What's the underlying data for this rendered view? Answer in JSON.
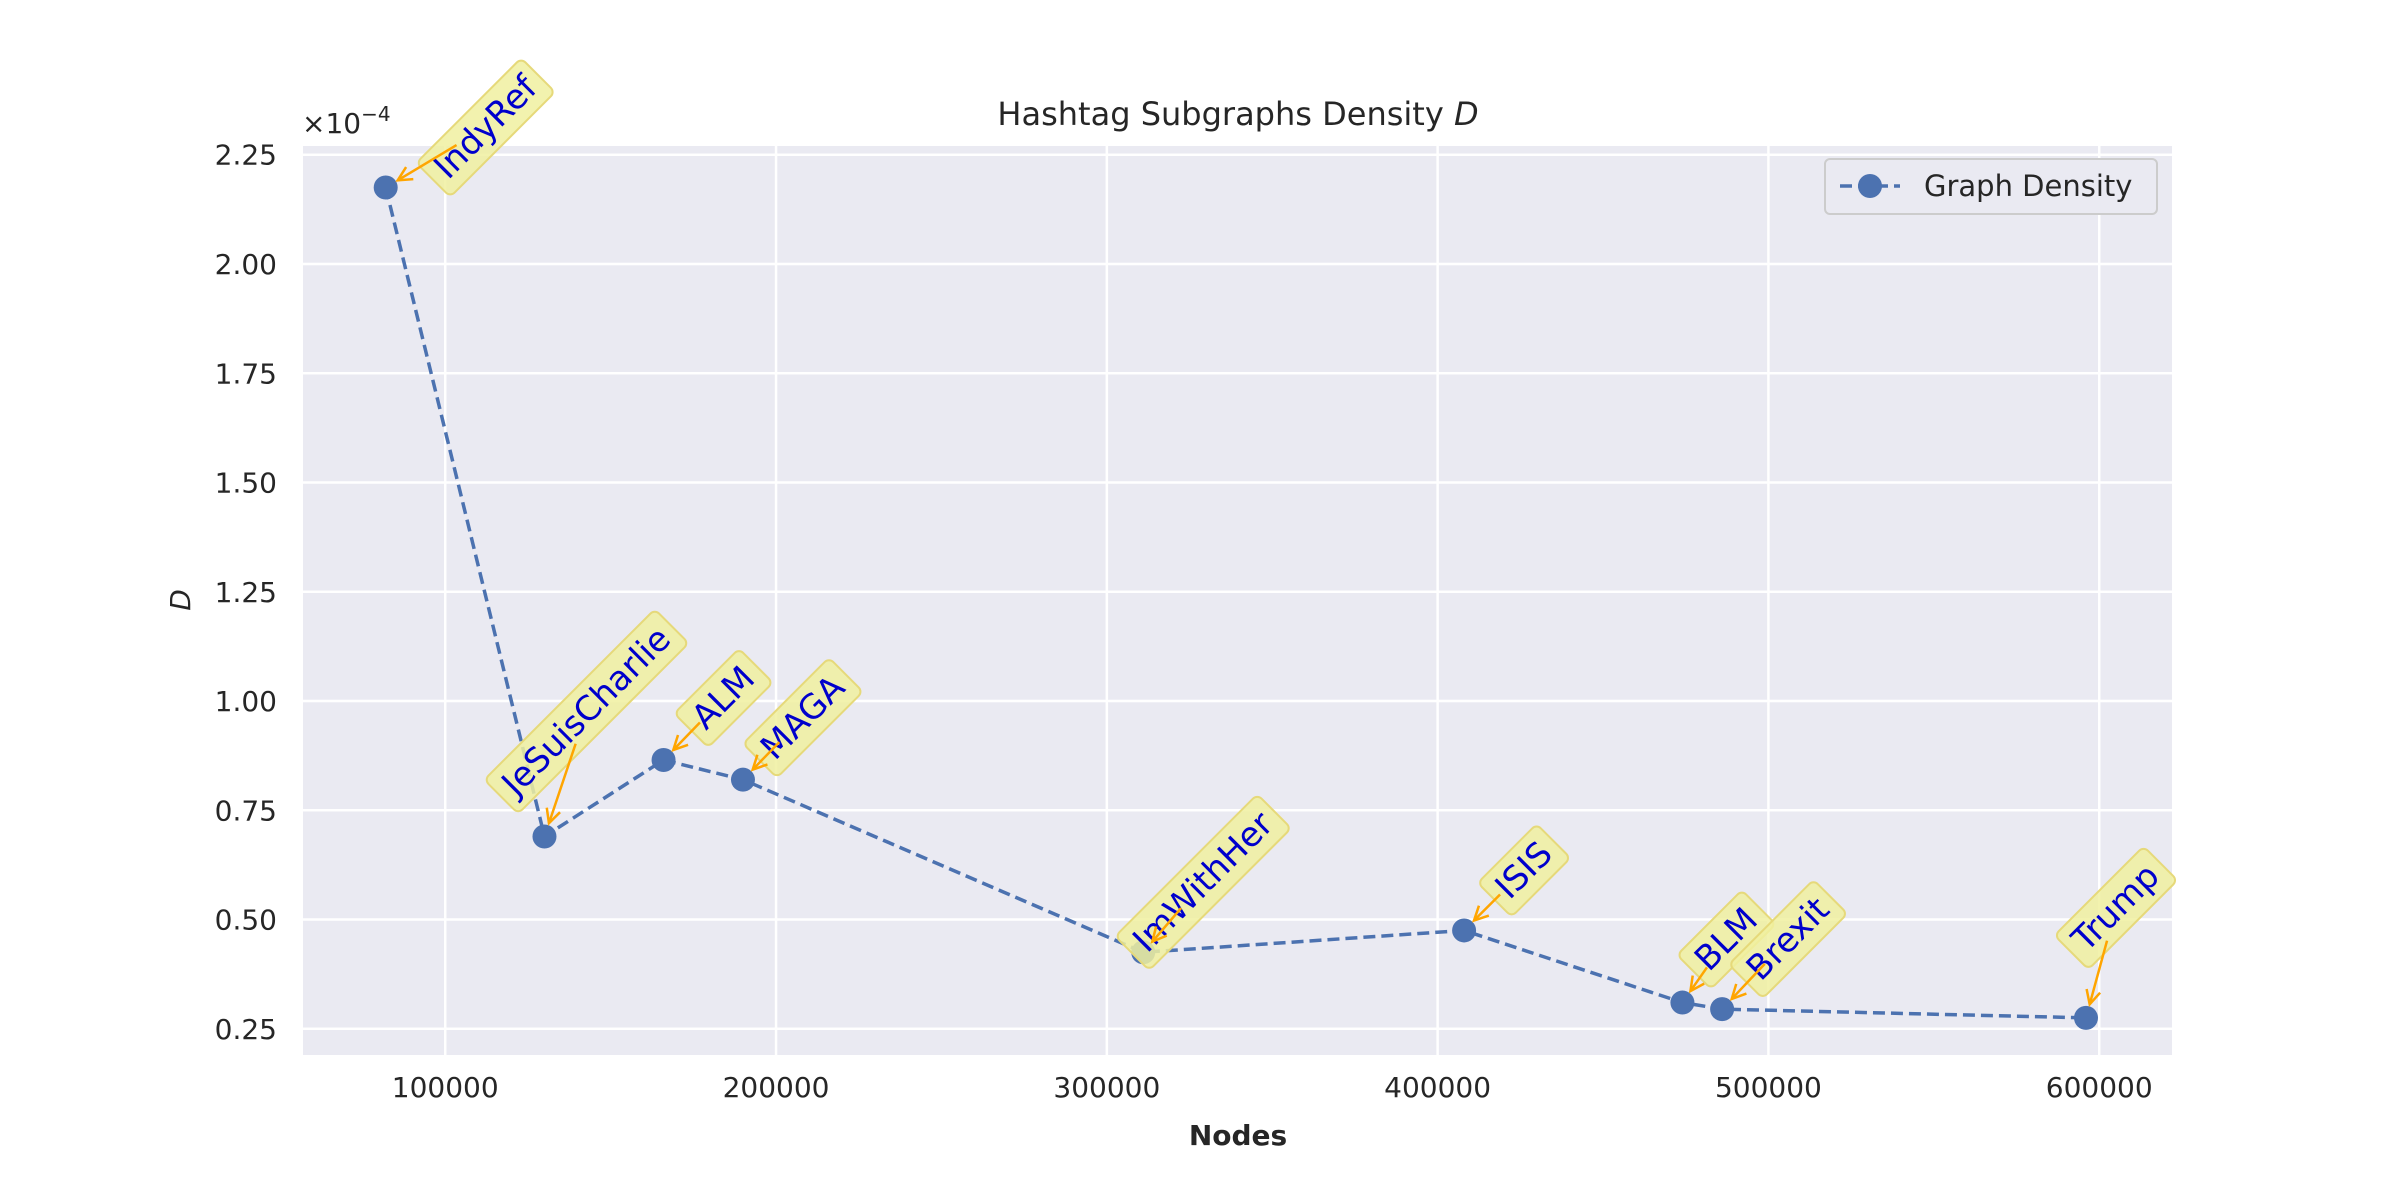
{
  "chart_data": {
    "type": "line",
    "title": "Hashtag Subgraphs Density",
    "title_symbol": "D",
    "xlabel": "Nodes",
    "ylabel": "D",
    "y_scale_label": "×10",
    "y_scale_exponent": "−4",
    "xlim": [
      57000,
      622000
    ],
    "ylim": [
      0.19,
      2.27
    ],
    "x_ticks": [
      100000,
      200000,
      300000,
      400000,
      500000,
      600000
    ],
    "y_ticks": [
      0.25,
      0.5,
      0.75,
      1.0,
      1.25,
      1.5,
      1.75,
      2.0,
      2.25
    ],
    "grid": true,
    "legend_position": "top-right",
    "legend": [
      "Graph Density"
    ],
    "series": [
      {
        "name": "Graph Density",
        "color": "#4c72b0",
        "style": "dashed",
        "marker": "circle",
        "points": [
          {
            "x": 82000,
            "y": 2.175,
            "label": "IndyRef"
          },
          {
            "x": 130000,
            "y": 0.69,
            "label": "JeSuisCharlie"
          },
          {
            "x": 166000,
            "y": 0.865,
            "label": "ALM"
          },
          {
            "x": 190000,
            "y": 0.82,
            "label": "MAGA"
          },
          {
            "x": 311000,
            "y": 0.425,
            "label": "ImWithHer"
          },
          {
            "x": 408000,
            "y": 0.475,
            "label": "ISIS"
          },
          {
            "x": 474000,
            "y": 0.31,
            "label": "BLM"
          },
          {
            "x": 486000,
            "y": 0.295,
            "label": "Brexit"
          },
          {
            "x": 596000,
            "y": 0.275,
            "label": "Trump"
          }
        ]
      }
    ],
    "colors": {
      "plot_background": "#eaeaf2",
      "grid": "#ffffff",
      "annotation_box": "#f0f0a0",
      "annotation_text": "#0000cc",
      "arrow": "#ffa500"
    }
  }
}
